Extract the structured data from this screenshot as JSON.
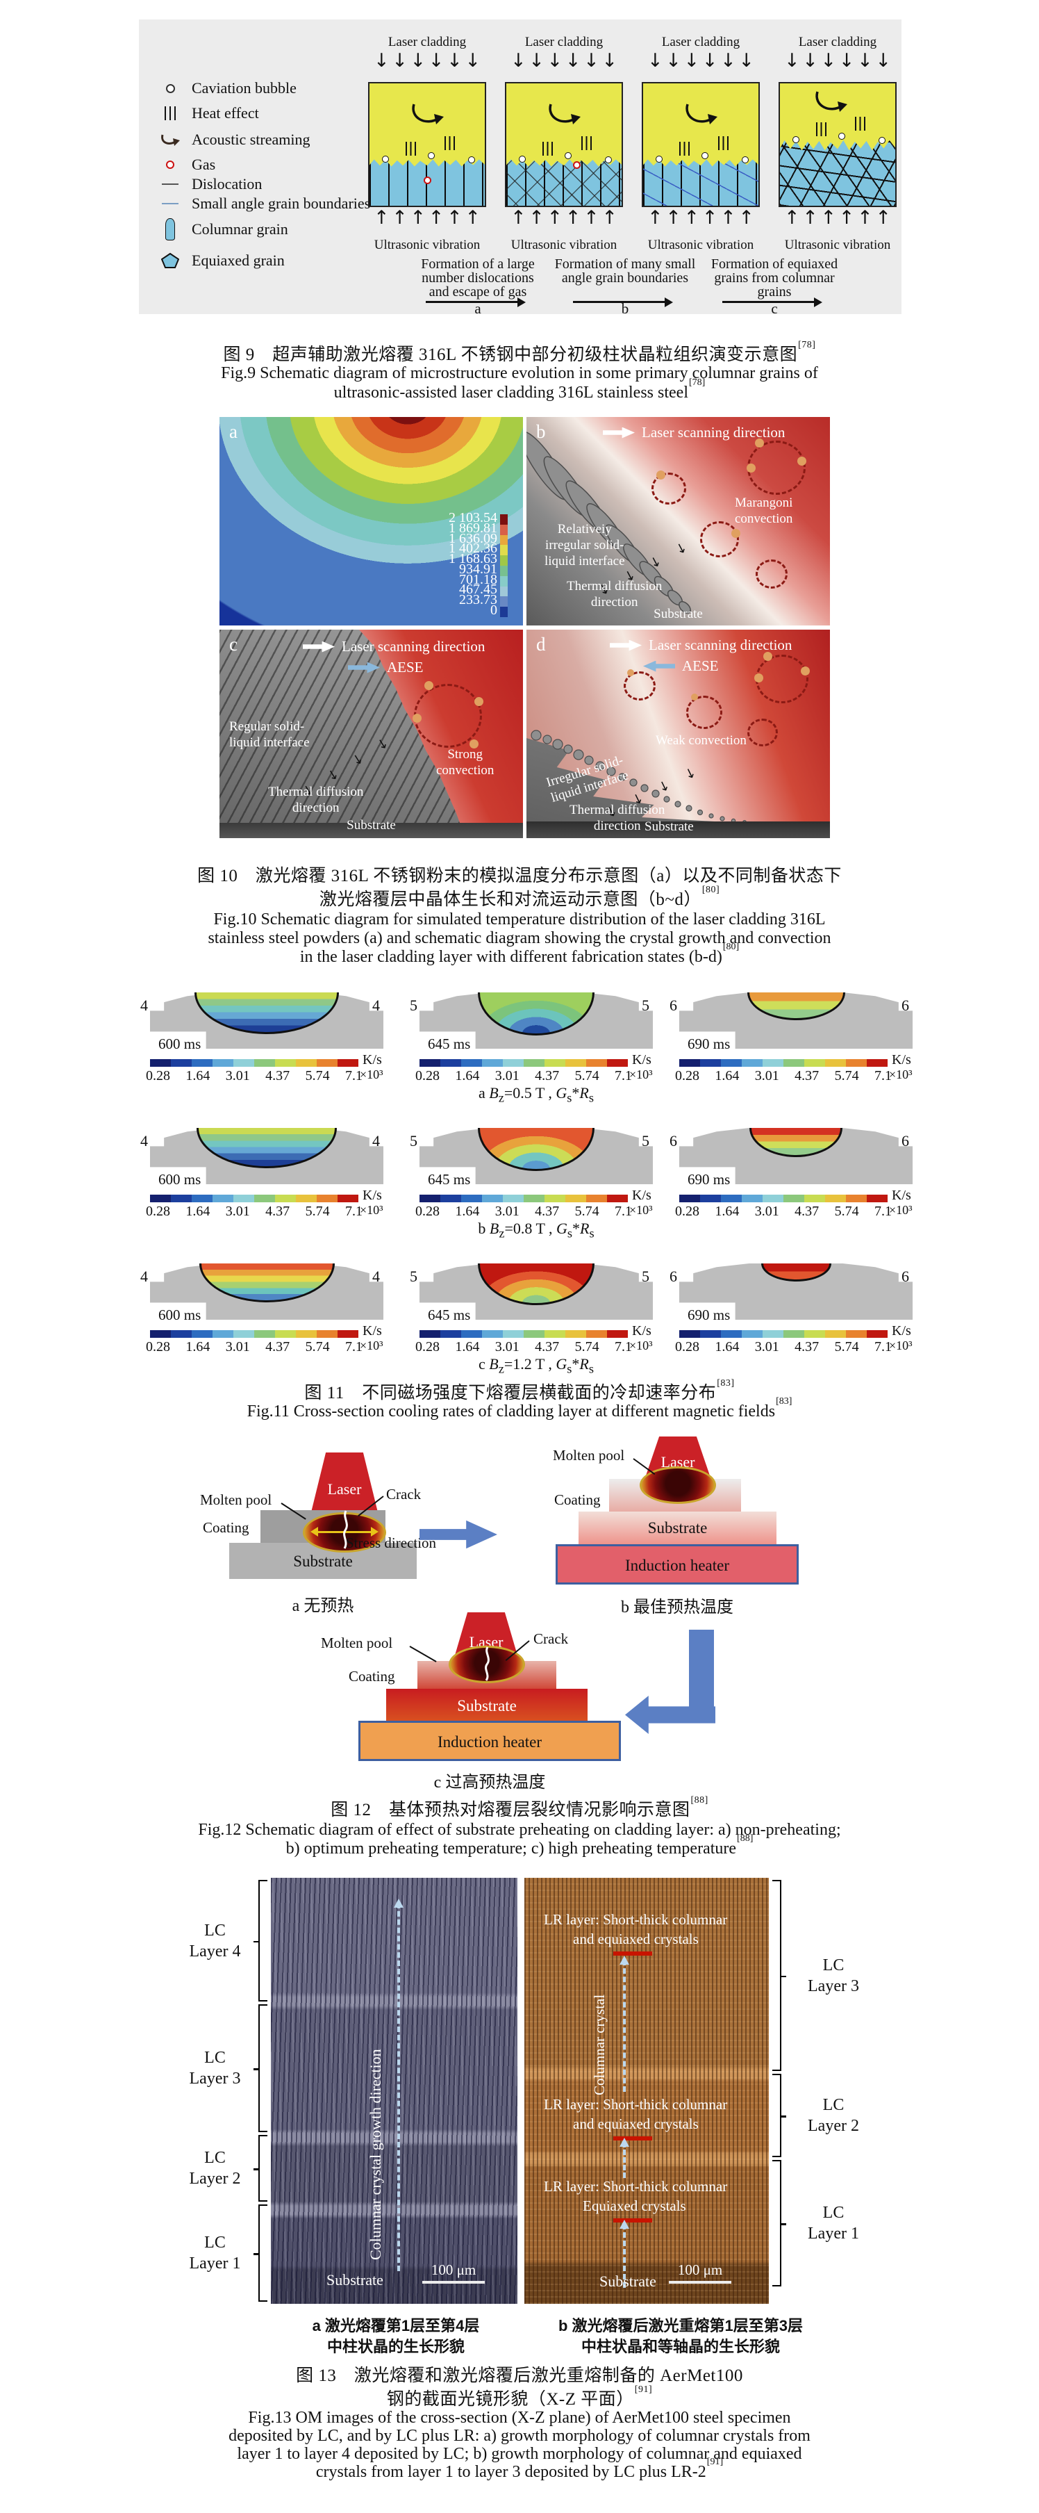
{
  "fig9": {
    "legend": [
      {
        "icon": "cavitation-bubble-icon",
        "label": "Caviation bubble"
      },
      {
        "icon": "heat-effect-icon",
        "label": "Heat effect"
      },
      {
        "icon": "acoustic-streaming-icon",
        "label": "Acoustic streaming"
      },
      {
        "icon": "gas-icon",
        "label": "Gas"
      },
      {
        "icon": "dislocation-icon",
        "label": "Dislocation"
      },
      {
        "icon": "small-angle-grain-boundaries-icon",
        "label": "Small angle grain boundaries"
      },
      {
        "icon": "columnar-grain-icon",
        "label": "Columnar grain"
      },
      {
        "icon": "equiaxed-grain-icon",
        "label": "Equiaxed grain"
      }
    ],
    "panel_top_label": "Laser cladding",
    "panel_bottom_label": "Ultrasonic vibration",
    "panels": [
      {
        "stage": "g1"
      },
      {
        "stage": "g2"
      },
      {
        "stage": "g3"
      },
      {
        "stage": "g4"
      }
    ],
    "notes": [
      {
        "lines": [
          "Formation of a large",
          "number dislocations",
          "and escape of gas"
        ],
        "letter": "a"
      },
      {
        "lines": [
          "Formation of many small",
          "angle grain boundaries"
        ],
        "letter": "b"
      },
      {
        "lines": [
          "Formation of equiaxed",
          "grains from columnar",
          "grains"
        ],
        "letter": "c"
      }
    ],
    "caption_zh": "图 9　超声辅助激光熔覆 316L 不锈钢中部分初级柱状晶粒组织演变示意图",
    "caption_zh_ref": "[78]",
    "caption_en_line1": "Fig.9 Schematic diagram of microstructure evolution in some primary columnar grains of",
    "caption_en_line2": "ultrasonic-assisted laser cladding 316L stainless steel",
    "caption_en_ref": "[78]"
  },
  "fig10": {
    "panels": {
      "a": {
        "letter": "a",
        "scale_values": [
          "2 103.54",
          "1 869.81",
          "1 636.09",
          "1 402.36",
          "1 168.63",
          "934.91",
          "701.18",
          "467.45",
          "233.73",
          "0"
        ],
        "scale_colors": [
          "#7c1010",
          "#d86048",
          "#e8a83c",
          "#e0dc4c",
          "#a0c848",
          "#78c090",
          "#88ccc8",
          "#a0c8d8",
          "#6888c4",
          "#1c3a96"
        ]
      },
      "b": {
        "letter": "b",
        "scan": "Laser scanning direction",
        "convection_line1": "Marangoni",
        "convection_line2": "convection",
        "interface_line1": "Relativeiy",
        "interface_line2": "irregular solid-",
        "interface_line3": "liquid interface",
        "thermal_line1": "Thermal diffusion",
        "thermal_line2": "direction",
        "substrate": "Substrate"
      },
      "c": {
        "letter": "c",
        "scan": "Laser scanning direction",
        "aese": "AESE",
        "interface_line1": "Regular solid-",
        "interface_line2": "liquid interface",
        "convection_line1": "Strong",
        "convection_line2": "convection",
        "thermal_line1": "Thermal diffusion",
        "thermal_line2": "direction",
        "substrate": "Substrate"
      },
      "d": {
        "letter": "d",
        "scan": "Laser scanning direction",
        "aese": "AESE",
        "convection": "Weak convection",
        "interface_line1": "Irregular solid-",
        "interface_line2": "liquid interface",
        "thermal_line1": "Thermal diffusion",
        "thermal_line2": "direction",
        "substrate": "Substrate"
      }
    },
    "caption_zh_line1": "图 10　激光熔覆 316L 不锈钢粉末的模拟温度分布示意图（a）以及不同制备状态下",
    "caption_zh_line2": "激光熔覆层中晶体生长和对流运动示意图（b~d）",
    "caption_zh_ref": "[80]",
    "caption_en_line1": "Fig.10 Schematic diagram for simulated temperature distribution of the laser cladding 316L",
    "caption_en_line2": "stainless steel powders (a) and schematic diagram showing the crystal growth and convection",
    "caption_en_line3": "in the laser cladding layer with different fabrication states (b-d)",
    "caption_en_ref": "[80]"
  },
  "fig11": {
    "colorbar": {
      "ticks": [
        "0.28",
        "1.64",
        "3.01",
        "4.37",
        "5.74",
        "7.1"
      ],
      "unit": "K/s",
      "scale": "×10³",
      "colors": [
        "#14206e",
        "#1c3f9e",
        "#2d6cc0",
        "#5fa8d8",
        "#8fd0d8",
        "#8cc87c",
        "#c8dc52",
        "#e8c23c",
        "#e8822e",
        "#c01810"
      ]
    },
    "eq": {
      "B": "B",
      "z": "z",
      "equals": "=",
      "tesla": " T , ",
      "G": "G",
      "s": "s",
      "star": "*",
      "R": "R"
    },
    "rows": [
      {
        "letter": "a",
        "bz": "0.5",
        "panels": [
          {
            "num": "4",
            "time": "600 ms",
            "pool": {
              "style": "bands",
              "w": 0.62,
              "h": 60,
              "colors": [
                "#cada52",
                "#8fc888",
                "#74c6c0",
                "#66a8d4",
                "#3c6cb4",
                "#1e3f96"
              ]
            }
          },
          {
            "num": "5",
            "time": "645 ms",
            "pool": {
              "style": "centered",
              "w": 0.5,
              "h": 62,
              "colors": [
                "#9ecf5e",
                "#7cc47c",
                "#6cc4bc",
                "#4f86c4",
                "#204a9e"
              ]
            }
          },
          {
            "num": "6",
            "time": "690 ms",
            "pool": {
              "style": "bands",
              "w": 0.42,
              "h": 40,
              "colors": [
                "#e89a3c",
                "#cede5a",
                "#94cc8c"
              ]
            }
          }
        ]
      },
      {
        "letter": "b",
        "bz": "0.8",
        "panels": [
          {
            "num": "4",
            "time": "600 ms",
            "pool": {
              "style": "bands",
              "w": 0.6,
              "h": 58,
              "colors": [
                "#cada52",
                "#8fc888",
                "#74c6c0",
                "#66a8d4",
                "#3c6cb4",
                "#1e3f96"
              ]
            }
          },
          {
            "num": "5",
            "time": "645 ms",
            "pool": {
              "style": "centered",
              "w": 0.5,
              "h": 62,
              "colors": [
                "#e2572f",
                "#e8a23c",
                "#ccdc56",
                "#74c6c0",
                "#5b9bd0"
              ]
            }
          },
          {
            "num": "6",
            "time": "690 ms",
            "pool": {
              "style": "bands",
              "w": 0.4,
              "h": 42,
              "colors": [
                "#d43222",
                "#e89a3c",
                "#cede5a",
                "#94cc8c"
              ]
            }
          }
        ]
      },
      {
        "letter": "c",
        "bz": "1.2",
        "panels": [
          {
            "num": "4",
            "time": "600 ms",
            "pool": {
              "style": "bands",
              "w": 0.58,
              "h": 56,
              "colors": [
                "#e2572f",
                "#e8a23c",
                "#e8d84c",
                "#a8d070",
                "#6cc4bc",
                "#4f86c4"
              ]
            }
          },
          {
            "num": "5",
            "time": "645 ms",
            "pool": {
              "style": "centered",
              "w": 0.5,
              "h": 60,
              "colors": [
                "#c01810",
                "#e2572f",
                "#e8a23c",
                "#ccdc56",
                "#8fc888"
              ]
            }
          },
          {
            "num": "6",
            "time": "690 ms",
            "pool": {
              "style": "bands",
              "w": 0.3,
              "h": 26,
              "colors": [
                "#c01810",
                "#e2572f"
              ]
            }
          }
        ]
      }
    ],
    "caption_zh": "图 11　不同磁场强度下熔覆层横截面的冷却速率分布",
    "caption_zh_ref": "[83]",
    "caption_en": "Fig.11 Cross-section cooling rates of cladding layer at different magnetic fields",
    "caption_en_ref": "[83]"
  },
  "fig12": {
    "labels": {
      "laser": "Laser",
      "molten": "Molten pool",
      "crack": "Crack",
      "coating": "Coating",
      "stress": "Stress direction",
      "substrate": "Substrate",
      "heater": "Induction heater"
    },
    "sub_a": "a  无预热",
    "sub_b": "b  最佳预热温度",
    "sub_c": "c  过高预热温度",
    "caption_zh": "图 12　基体预热对熔覆层裂纹情况影响示意图",
    "caption_zh_ref": "[88]",
    "caption_en_line1": "Fig.12 Schematic diagram of effect of substrate preheating on cladding layer: a) non-preheating;",
    "caption_en_line2": "b) optimum preheating temperature; c) high preheating temperature",
    "caption_en_ref": "[88]"
  },
  "fig13": {
    "left_layers": [
      {
        "line1": "LC",
        "line2": "Layer 4"
      },
      {
        "line1": "LC",
        "line2": "Layer 3"
      },
      {
        "line1": "LC",
        "line2": "Layer 2"
      },
      {
        "line1": "LC",
        "line2": "Layer 1"
      }
    ],
    "right_layers": [
      {
        "line1": "LC",
        "line2": "Layer 3"
      },
      {
        "line1": "LC",
        "line2": "Layer 2"
      },
      {
        "line1": "LC",
        "line2": "Layer 1"
      }
    ],
    "panel_a": {
      "growth": "Columnar crystal growth direction",
      "substrate": "Substrate",
      "scalebar": "100 μm"
    },
    "panel_b": {
      "lr_top_line1": "LR layer: Short-thick columnar",
      "lr_top_line2": "and equiaxed crystals",
      "columnar": "Columnar crystal",
      "lr_mid_line1": "LR layer: Short-thick columnar",
      "lr_mid_line2": "and equiaxed crystals",
      "lr_bottom_line1": "LR layer: Short-thick columnar",
      "lr_bottom_line2": "Equiaxed crystals",
      "substrate": "Substrate",
      "scalebar": "100 μm"
    },
    "sub_a_line1": "a  激光熔覆第1层至第4层",
    "sub_a_line2": "中柱状晶的生长形貌",
    "sub_b_line1": "b  激光熔覆后激光重熔第1层至第3层",
    "sub_b_line2": "中柱状晶和等轴晶的生长形貌",
    "caption_zh_line1": "图 13　激光熔覆和激光熔覆后激光重熔制备的 AerMet100",
    "caption_zh_line2": "钢的截面光镜形貌（X-Z 平面）",
    "caption_zh_ref": "[91]",
    "caption_en_line1": "Fig.13 OM images of the cross-section (X-Z plane) of AerMet100 steel specimen",
    "caption_en_line2": "deposited by LC, and by LC plus LR: a) growth morphology of columnar crystals from",
    "caption_en_line3": "layer 1 to layer 4 deposited by LC; b) growth morphology of columnar and equiaxed",
    "caption_en_line4": "crystals from layer 1 to layer 3 deposited by LC plus LR-2",
    "caption_en_ref": "[91]"
  },
  "colors": {
    "fig9_panel_bg": "#ececec",
    "fig9_melt_yellow": "#e7e74c",
    "fig9_grain_blue": "#7fc4df",
    "laser_red": "#cb2127",
    "arrow_blue": "#5b7fc4",
    "heater_red": "#e2606a",
    "heater_orange": "#f0a050",
    "micro_a_base": "#60607a",
    "micro_b_base": "#ad7038",
    "substrate_gray": "#bdbdbd"
  }
}
